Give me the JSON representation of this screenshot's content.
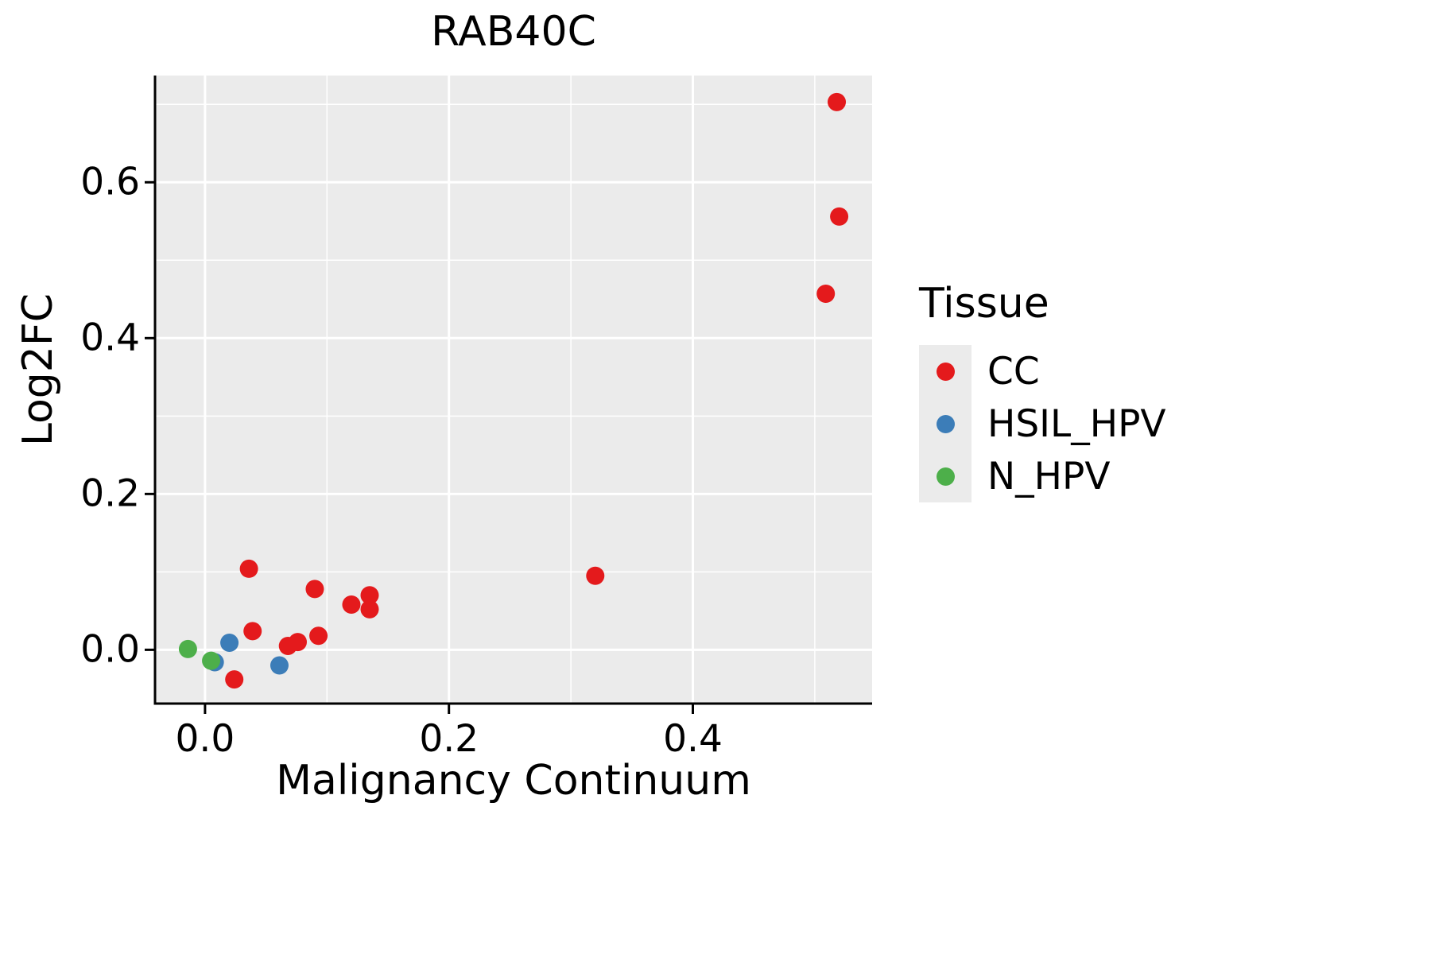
{
  "title": "RAB40C",
  "axes": {
    "x_label": "Malignancy Continuum",
    "y_label": "Log2FC",
    "x_ticks": [
      "0.0",
      "0.2",
      "0.4"
    ],
    "y_ticks": [
      "0.0",
      "0.2",
      "0.4",
      "0.6"
    ]
  },
  "legend": {
    "title": "Tissue",
    "entries": [
      {
        "label": "CC",
        "color": "#E41A1C"
      },
      {
        "label": "HSIL_HPV",
        "color": "#3C7DB8"
      },
      {
        "label": "N_HPV",
        "color": "#4DAF4A"
      }
    ]
  },
  "style": {
    "panel_bg": "#EBEBEB",
    "grid_color": "#FFFFFF",
    "axis_color": "#000000"
  },
  "chart_data": {
    "type": "scatter",
    "title": "RAB40C",
    "xlabel": "Malignancy Continuum",
    "ylabel": "Log2FC",
    "xlim": [
      -0.041,
      0.547
    ],
    "ylim": [
      -0.069,
      0.737
    ],
    "x_major_ticks": [
      0.0,
      0.2,
      0.4
    ],
    "y_major_ticks": [
      0.0,
      0.2,
      0.4,
      0.6
    ],
    "x_minor_ticks": [
      0.1,
      0.3,
      0.5
    ],
    "y_minor_ticks": [
      0.1,
      0.3,
      0.5,
      0.7
    ],
    "grid": true,
    "legend_position": "right",
    "series": [
      {
        "name": "CC",
        "color": "#E41A1C",
        "points": [
          [
            0.518,
            0.703
          ],
          [
            0.52,
            0.556
          ],
          [
            0.509,
            0.457
          ],
          [
            0.32,
            0.095
          ],
          [
            0.036,
            0.104
          ],
          [
            0.09,
            0.078
          ],
          [
            0.12,
            0.058
          ],
          [
            0.135,
            0.07
          ],
          [
            0.135,
            0.052
          ],
          [
            0.039,
            0.024
          ],
          [
            0.093,
            0.018
          ],
          [
            0.076,
            0.01
          ],
          [
            0.068,
            0.005
          ],
          [
            0.024,
            -0.038
          ]
        ]
      },
      {
        "name": "HSIL_HPV",
        "color": "#3C7DB8",
        "points": [
          [
            0.02,
            0.009
          ],
          [
            0.008,
            -0.016
          ],
          [
            0.061,
            -0.02
          ]
        ]
      },
      {
        "name": "N_HPV",
        "color": "#4DAF4A",
        "points": [
          [
            -0.014,
            0.001
          ],
          [
            0.005,
            -0.014
          ]
        ]
      }
    ]
  }
}
